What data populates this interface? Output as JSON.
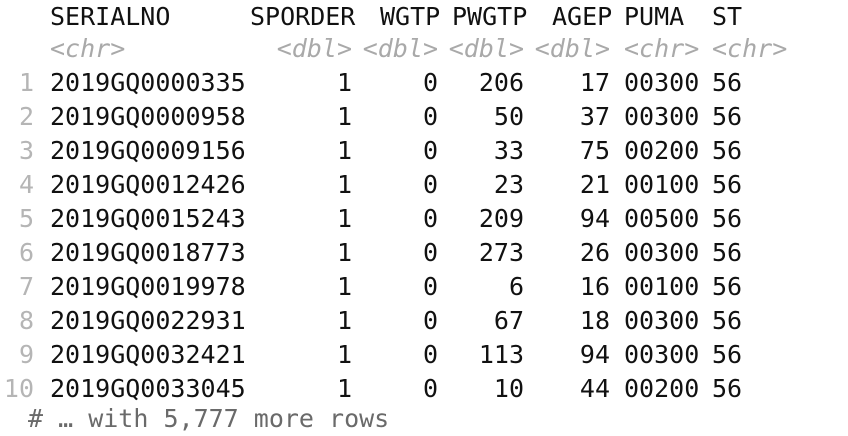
{
  "table": {
    "columns": [
      {
        "name": "SERIALNO",
        "type": "<chr>"
      },
      {
        "name": "SPORDER",
        "type": "<dbl>"
      },
      {
        "name": "WGTP",
        "type": "<dbl>"
      },
      {
        "name": "PWGTP",
        "type": "<dbl>"
      },
      {
        "name": "AGEP",
        "type": "<dbl>"
      },
      {
        "name": "PUMA",
        "type": "<chr>"
      },
      {
        "name": "ST",
        "type": "<chr>"
      }
    ],
    "rows": [
      {
        "n": "1",
        "cells": [
          "2019GQ0000335",
          "1",
          "0",
          "206",
          "17",
          "00300",
          "56"
        ]
      },
      {
        "n": "2",
        "cells": [
          "2019GQ0000958",
          "1",
          "0",
          "50",
          "37",
          "00300",
          "56"
        ]
      },
      {
        "n": "3",
        "cells": [
          "2019GQ0009156",
          "1",
          "0",
          "33",
          "75",
          "00200",
          "56"
        ]
      },
      {
        "n": "4",
        "cells": [
          "2019GQ0012426",
          "1",
          "0",
          "23",
          "21",
          "00100",
          "56"
        ]
      },
      {
        "n": "5",
        "cells": [
          "2019GQ0015243",
          "1",
          "0",
          "209",
          "94",
          "00500",
          "56"
        ]
      },
      {
        "n": "6",
        "cells": [
          "2019GQ0018773",
          "1",
          "0",
          "273",
          "26",
          "00300",
          "56"
        ]
      },
      {
        "n": "7",
        "cells": [
          "2019GQ0019978",
          "1",
          "0",
          "6",
          "16",
          "00100",
          "56"
        ]
      },
      {
        "n": "8",
        "cells": [
          "2019GQ0022931",
          "1",
          "0",
          "67",
          "18",
          "00300",
          "56"
        ]
      },
      {
        "n": "9",
        "cells": [
          "2019GQ0032421",
          "1",
          "0",
          "113",
          "94",
          "00300",
          "56"
        ]
      },
      {
        "n": "10",
        "cells": [
          "2019GQ0033045",
          "1",
          "0",
          "10",
          "44",
          "00200",
          "56"
        ]
      }
    ],
    "footer": "# … with 5,777 more rows"
  }
}
